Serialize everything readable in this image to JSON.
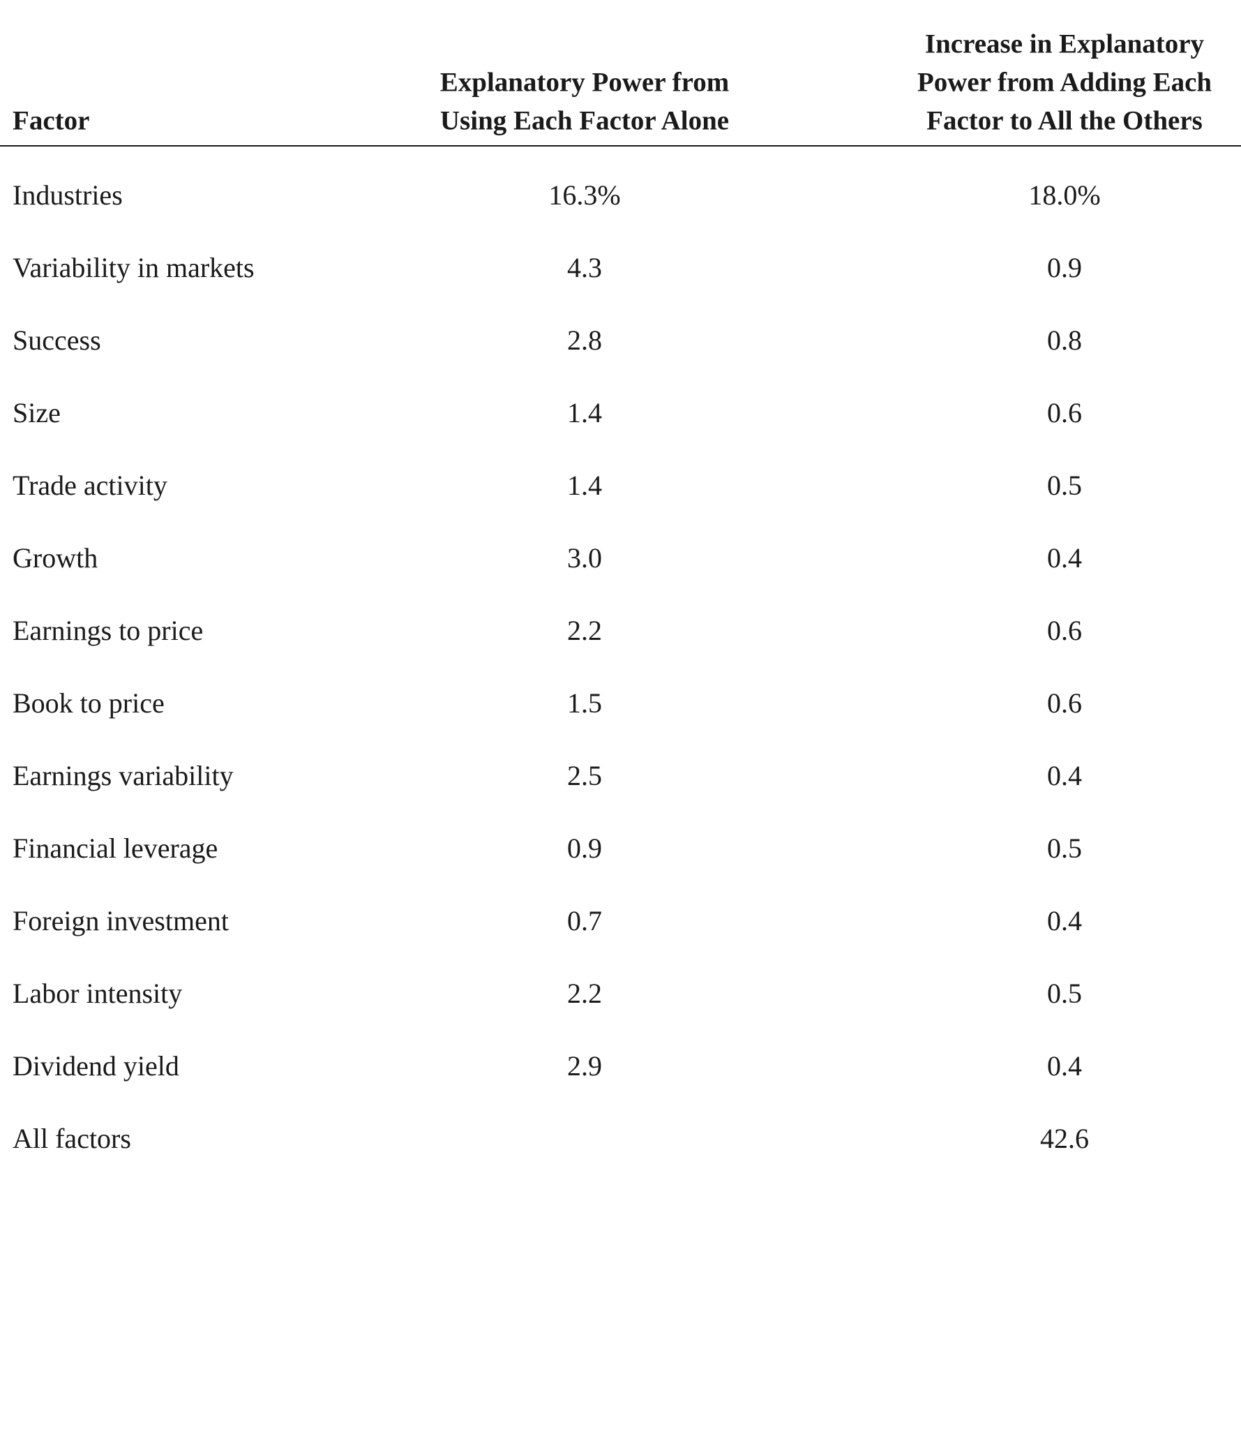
{
  "table": {
    "header": [
      [
        "Factor"
      ],
      [
        "Explanatory Power from",
        "Using Each Factor Alone"
      ],
      [
        "Increase in Explanatory",
        "Power from Adding Each",
        "Factor to All the Others"
      ]
    ],
    "rows": [
      [
        "Industries",
        "16.3%",
        "18.0%"
      ],
      [
        "Variability in markets",
        "4.3",
        "0.9"
      ],
      [
        "Success",
        "2.8",
        "0.8"
      ],
      [
        "Size",
        "1.4",
        "0.6"
      ],
      [
        "Trade activity",
        "1.4",
        "0.5"
      ],
      [
        "Growth",
        "3.0",
        "0.4"
      ],
      [
        "Earnings to price",
        "2.2",
        "0.6"
      ],
      [
        "Book to price",
        "1.5",
        "0.6"
      ],
      [
        "Earnings variability",
        "2.5",
        "0.4"
      ],
      [
        "Financial leverage",
        "0.9",
        "0.5"
      ],
      [
        "Foreign investment",
        "0.7",
        "0.4"
      ],
      [
        "Labor intensity",
        "2.2",
        "0.5"
      ],
      [
        "Dividend yield",
        "2.9",
        "0.4"
      ],
      [
        "All factors",
        null,
        "42.6"
      ]
    ]
  }
}
